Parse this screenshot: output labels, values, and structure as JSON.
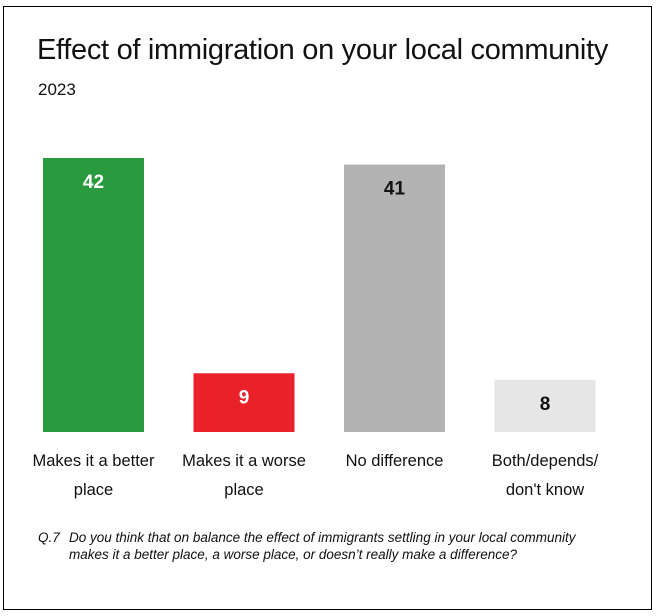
{
  "chart_data": {
    "type": "bar",
    "title": "Effect of immigration on your local community",
    "subtitle": "2023",
    "categories": [
      [
        "Makes it a better",
        "place"
      ],
      [
        "Makes it a worse",
        "place"
      ],
      [
        "No difference"
      ],
      [
        "Both/depends/",
        "don't know"
      ]
    ],
    "values": [
      42,
      9,
      41,
      8
    ],
    "colors": [
      "#2a9a3f",
      "#e8212a",
      "#b3b3b3",
      "#e6e6e6"
    ],
    "value_label_colors": [
      "#ffffff",
      "#ffffff",
      "#111111",
      "#111111"
    ],
    "ylim": [
      0,
      42
    ],
    "grid": false,
    "legend": "none"
  },
  "footnote": {
    "qnum": "Q.7",
    "text": "Do you think that on balance the effect of immigrants settling in your local community makes it a better place, a worse place, or doesn’t really make a difference?"
  }
}
